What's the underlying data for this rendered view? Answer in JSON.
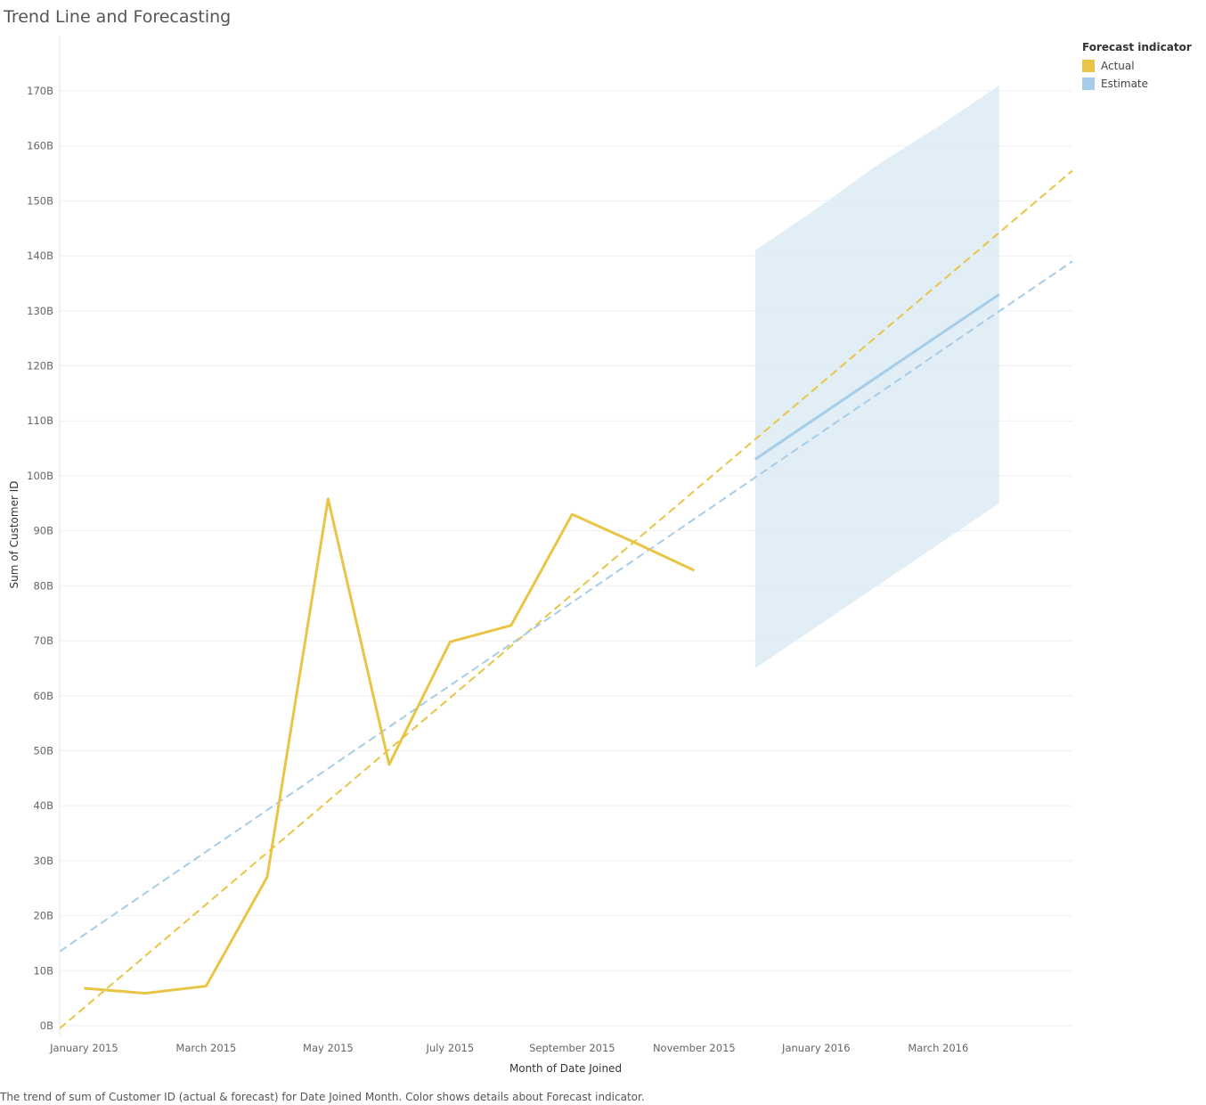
{
  "title": "Trend Line and Forecasting",
  "caption": "The trend of sum of Customer ID (actual & forecast)  for Date Joined Month.  Color shows details about Forecast indicator.",
  "legend": {
    "title": "Forecast indicator",
    "items": [
      {
        "label": "Actual",
        "color": "#E8C547"
      },
      {
        "label": "Estimate",
        "color": "#A6CDE8"
      }
    ]
  },
  "chart_data": {
    "type": "line",
    "xlabel": "Month of Date Joined",
    "ylabel": "Sum of Customer ID",
    "x_ticks": [
      "January 2015",
      "March 2015",
      "May 2015",
      "July 2015",
      "September 2015",
      "November 2015",
      "January 2016",
      "March 2016"
    ],
    "y_ticks": [
      "0B",
      "10B",
      "20B",
      "30B",
      "40B",
      "50B",
      "60B",
      "70B",
      "80B",
      "90B",
      "100B",
      "110B",
      "120B",
      "130B",
      "140B",
      "150B",
      "160B",
      "170B"
    ],
    "ylim": [
      0,
      170
    ],
    "y_unit": "B",
    "x_range_months": [
      -0.4,
      16.2
    ],
    "legend_position": "top-right",
    "grid": true,
    "series": [
      {
        "name": "Actual",
        "color": "#E8C547",
        "x": [
          "January 2015",
          "February 2015",
          "March 2015",
          "April 2015",
          "May 2015",
          "June 2015",
          "July 2015",
          "August 2015",
          "September 2015",
          "October 2015",
          "November 2015"
        ],
        "values": [
          6.8,
          5.9,
          7.2,
          27.0,
          95.8,
          47.5,
          69.8,
          72.8,
          93.0,
          88.0,
          82.8
        ]
      },
      {
        "name": "Estimate",
        "color": "#A6CDE8",
        "x": [
          "December 2015",
          "January 2016",
          "February 2016",
          "March 2016",
          "April 2016"
        ],
        "values": [
          103.0,
          110.5,
          118.0,
          125.5,
          133.0
        ],
        "band_upper": [
          141.0,
          148.5,
          156.5,
          163.5,
          171.0
        ],
        "band_lower": [
          65.0,
          72.5,
          80.0,
          87.5,
          95.0
        ]
      }
    ],
    "trend_lines": [
      {
        "name": "Actual",
        "color": "#E8C547",
        "x": [
          -0.4,
          16.2
        ],
        "values": [
          -0.5,
          155.5
        ]
      },
      {
        "name": "Estimate",
        "color": "#A6CDE8",
        "x": [
          -0.4,
          16.2
        ],
        "values": [
          13.5,
          139.0
        ]
      }
    ]
  }
}
